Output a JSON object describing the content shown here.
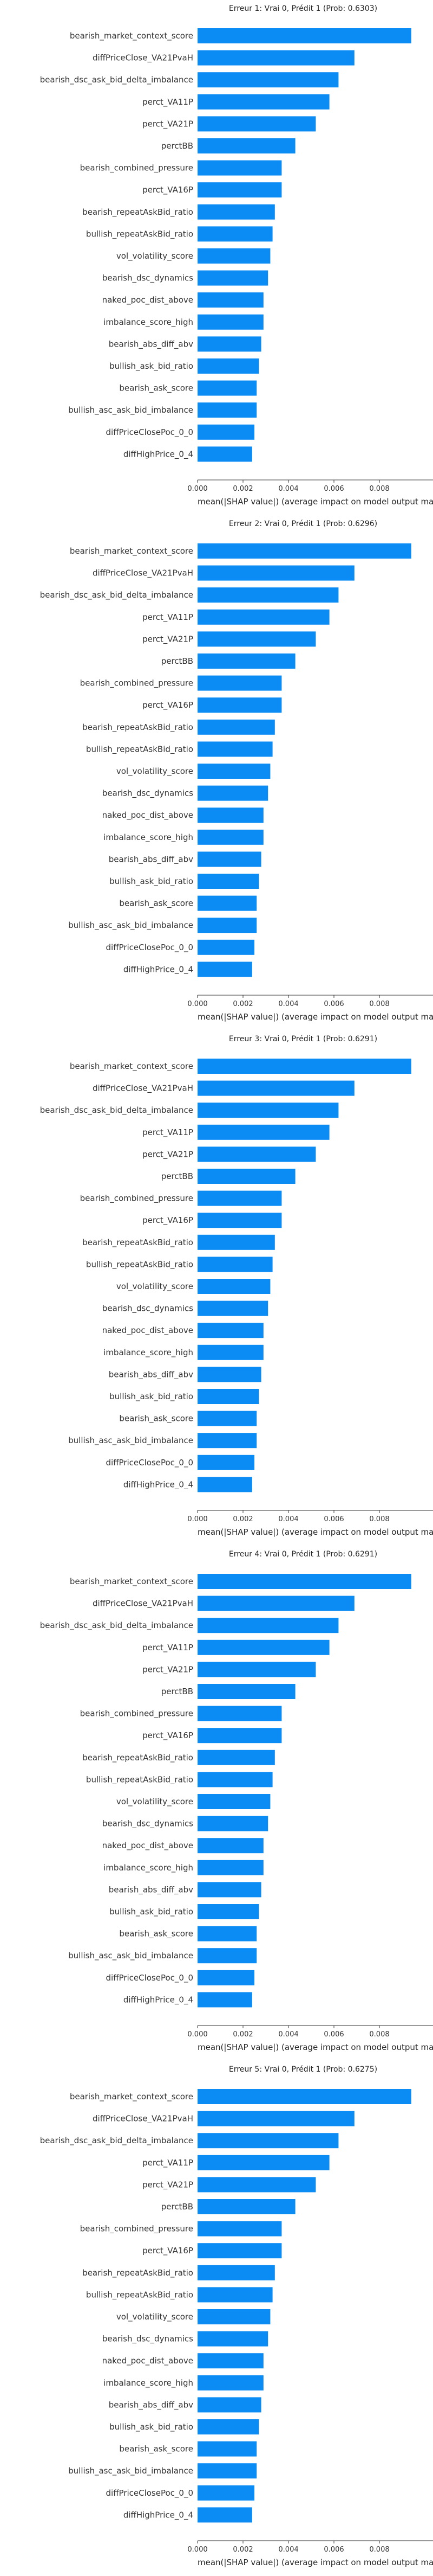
{
  "chart_data": [
    {
      "type": "bar",
      "title": "Erreur 1: Vrai 0, Prédit 1 (Prob: 0.6303)",
      "xlabel": "mean(|SHAP value|) (average impact on model output ma",
      "ylabel": "",
      "xlim": [
        0,
        0.0105
      ],
      "xticks": [
        "0.000",
        "0.002",
        "0.004",
        "0.006",
        "0.008"
      ],
      "xtick_values": [
        0,
        0.002,
        0.004,
        0.006,
        0.008
      ],
      "bar_color": "#0b8cf5",
      "grid": false,
      "orientation": "horizontal",
      "categories": [
        "bearish_market_context_score",
        "diffPriceClose_VA21PvaH",
        "bearish_dsc_ask_bid_delta_imbalance",
        "perct_VA11P",
        "perct_VA21P",
        "perctBB",
        "bearish_combined_pressure",
        "perct_VA16P",
        "bearish_repeatAskBid_ratio",
        "bullish_repeatAskBid_ratio",
        "vol_volatility_score",
        "bearish_dsc_dynamics",
        "naked_poc_dist_above",
        "imbalance_score_high",
        "bearish_abs_diff_abv",
        "bullish_ask_bid_ratio",
        "bearish_ask_score",
        "bullish_asc_ask_bid_imbalance",
        "diffPriceClosePoc_0_0",
        "diffHighPrice_0_4"
      ],
      "values": [
        0.0094,
        0.0069,
        0.0062,
        0.0058,
        0.0052,
        0.0043,
        0.0037,
        0.0037,
        0.0034,
        0.0033,
        0.0032,
        0.0031,
        0.0029,
        0.0029,
        0.0028,
        0.0027,
        0.0026,
        0.0026,
        0.0025,
        0.0024
      ]
    },
    {
      "type": "bar",
      "title": "Erreur 2: Vrai 0, Prédit 1 (Prob: 0.6296)",
      "xlabel": "mean(|SHAP value|) (average impact on model output ma",
      "ylabel": "",
      "xlim": [
        0,
        0.0105
      ],
      "xticks": [
        "0.000",
        "0.002",
        "0.004",
        "0.006",
        "0.008"
      ],
      "xtick_values": [
        0,
        0.002,
        0.004,
        0.006,
        0.008
      ],
      "bar_color": "#0b8cf5",
      "grid": false,
      "orientation": "horizontal",
      "categories": [
        "bearish_market_context_score",
        "diffPriceClose_VA21PvaH",
        "bearish_dsc_ask_bid_delta_imbalance",
        "perct_VA11P",
        "perct_VA21P",
        "perctBB",
        "bearish_combined_pressure",
        "perct_VA16P",
        "bearish_repeatAskBid_ratio",
        "bullish_repeatAskBid_ratio",
        "vol_volatility_score",
        "bearish_dsc_dynamics",
        "naked_poc_dist_above",
        "imbalance_score_high",
        "bearish_abs_diff_abv",
        "bullish_ask_bid_ratio",
        "bearish_ask_score",
        "bullish_asc_ask_bid_imbalance",
        "diffPriceClosePoc_0_0",
        "diffHighPrice_0_4"
      ],
      "values": [
        0.0094,
        0.0069,
        0.0062,
        0.0058,
        0.0052,
        0.0043,
        0.0037,
        0.0037,
        0.0034,
        0.0033,
        0.0032,
        0.0031,
        0.0029,
        0.0029,
        0.0028,
        0.0027,
        0.0026,
        0.0026,
        0.0025,
        0.0024
      ]
    },
    {
      "type": "bar",
      "title": "Erreur 3: Vrai 0, Prédit 1 (Prob: 0.6291)",
      "xlabel": "mean(|SHAP value|) (average impact on model output ma",
      "ylabel": "",
      "xlim": [
        0,
        0.0105
      ],
      "xticks": [
        "0.000",
        "0.002",
        "0.004",
        "0.006",
        "0.008"
      ],
      "xtick_values": [
        0,
        0.002,
        0.004,
        0.006,
        0.008
      ],
      "bar_color": "#0b8cf5",
      "grid": false,
      "orientation": "horizontal",
      "categories": [
        "bearish_market_context_score",
        "diffPriceClose_VA21PvaH",
        "bearish_dsc_ask_bid_delta_imbalance",
        "perct_VA11P",
        "perct_VA21P",
        "perctBB",
        "bearish_combined_pressure",
        "perct_VA16P",
        "bearish_repeatAskBid_ratio",
        "bullish_repeatAskBid_ratio",
        "vol_volatility_score",
        "bearish_dsc_dynamics",
        "naked_poc_dist_above",
        "imbalance_score_high",
        "bearish_abs_diff_abv",
        "bullish_ask_bid_ratio",
        "bearish_ask_score",
        "bullish_asc_ask_bid_imbalance",
        "diffPriceClosePoc_0_0",
        "diffHighPrice_0_4"
      ],
      "values": [
        0.0094,
        0.0069,
        0.0062,
        0.0058,
        0.0052,
        0.0043,
        0.0037,
        0.0037,
        0.0034,
        0.0033,
        0.0032,
        0.0031,
        0.0029,
        0.0029,
        0.0028,
        0.0027,
        0.0026,
        0.0026,
        0.0025,
        0.0024
      ]
    },
    {
      "type": "bar",
      "title": "Erreur 4: Vrai 0, Prédit 1 (Prob: 0.6291)",
      "xlabel": "mean(|SHAP value|) (average impact on model output ma",
      "ylabel": "",
      "xlim": [
        0,
        0.0105
      ],
      "xticks": [
        "0.000",
        "0.002",
        "0.004",
        "0.006",
        "0.008"
      ],
      "xtick_values": [
        0,
        0.002,
        0.004,
        0.006,
        0.008
      ],
      "bar_color": "#0b8cf5",
      "grid": false,
      "orientation": "horizontal",
      "categories": [
        "bearish_market_context_score",
        "diffPriceClose_VA21PvaH",
        "bearish_dsc_ask_bid_delta_imbalance",
        "perct_VA11P",
        "perct_VA21P",
        "perctBB",
        "bearish_combined_pressure",
        "perct_VA16P",
        "bearish_repeatAskBid_ratio",
        "bullish_repeatAskBid_ratio",
        "vol_volatility_score",
        "bearish_dsc_dynamics",
        "naked_poc_dist_above",
        "imbalance_score_high",
        "bearish_abs_diff_abv",
        "bullish_ask_bid_ratio",
        "bearish_ask_score",
        "bullish_asc_ask_bid_imbalance",
        "diffPriceClosePoc_0_0",
        "diffHighPrice_0_4"
      ],
      "values": [
        0.0094,
        0.0069,
        0.0062,
        0.0058,
        0.0052,
        0.0043,
        0.0037,
        0.0037,
        0.0034,
        0.0033,
        0.0032,
        0.0031,
        0.0029,
        0.0029,
        0.0028,
        0.0027,
        0.0026,
        0.0026,
        0.0025,
        0.0024
      ]
    },
    {
      "type": "bar",
      "title": "Erreur 5: Vrai 0, Prédit 1 (Prob: 0.6275)",
      "xlabel": "mean(|SHAP value|) (average impact on model output ma",
      "ylabel": "",
      "xlim": [
        0,
        0.0105
      ],
      "xticks": [
        "0.000",
        "0.002",
        "0.004",
        "0.006",
        "0.008"
      ],
      "xtick_values": [
        0,
        0.002,
        0.004,
        0.006,
        0.008
      ],
      "bar_color": "#0b8cf5",
      "grid": false,
      "orientation": "horizontal",
      "categories": [
        "bearish_market_context_score",
        "diffPriceClose_VA21PvaH",
        "bearish_dsc_ask_bid_delta_imbalance",
        "perct_VA11P",
        "perct_VA21P",
        "perctBB",
        "bearish_combined_pressure",
        "perct_VA16P",
        "bearish_repeatAskBid_ratio",
        "bullish_repeatAskBid_ratio",
        "vol_volatility_score",
        "bearish_dsc_dynamics",
        "naked_poc_dist_above",
        "imbalance_score_high",
        "bearish_abs_diff_abv",
        "bullish_ask_bid_ratio",
        "bearish_ask_score",
        "bullish_asc_ask_bid_imbalance",
        "diffPriceClosePoc_0_0",
        "diffHighPrice_0_4"
      ],
      "values": [
        0.0094,
        0.0069,
        0.0062,
        0.0058,
        0.0052,
        0.0043,
        0.0037,
        0.0037,
        0.0034,
        0.0033,
        0.0032,
        0.0031,
        0.0029,
        0.0029,
        0.0028,
        0.0027,
        0.0026,
        0.0026,
        0.0025,
        0.0024
      ]
    }
  ]
}
